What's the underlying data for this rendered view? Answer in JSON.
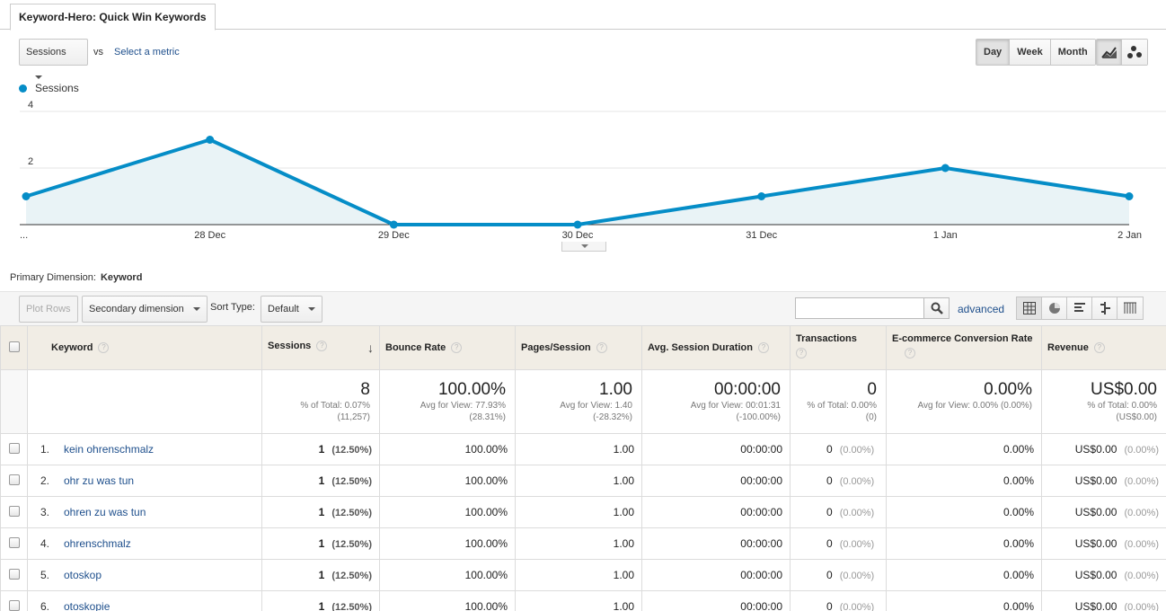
{
  "report_tab": "Keyword-Hero: Quick Win Keywords",
  "controls": {
    "metric": "Sessions",
    "vs": "vs",
    "select_metric": "Select a metric",
    "granularity": [
      "Day",
      "Week",
      "Month"
    ],
    "active_granularity": "Day"
  },
  "chart_data": {
    "type": "area",
    "series": [
      {
        "name": "Sessions",
        "color": "#058dc7",
        "values": [
          1,
          3,
          0,
          0,
          1,
          2,
          1
        ]
      }
    ],
    "x_ticks": [
      "...",
      "28 Dec",
      "29 Dec",
      "30 Dec",
      "31 Dec",
      "1 Jan",
      "2 Jan"
    ],
    "y_ticks": [
      2,
      4
    ],
    "ylim": [
      0,
      4
    ],
    "grid": true,
    "legend": "top-left"
  },
  "primary_dimension": {
    "label": "Primary Dimension:",
    "value": "Keyword"
  },
  "toolbar": {
    "plot_rows": "Plot Rows",
    "secondary_dimension": "Secondary dimension",
    "sort_type_label": "Sort Type:",
    "sort_type": "Default",
    "advanced": "advanced"
  },
  "table": {
    "headers": {
      "keyword": "Keyword",
      "sessions": "Sessions",
      "bounce": "Bounce Rate",
      "pages": "Pages/Session",
      "duration": "Avg. Session Duration",
      "transactions": "Transactions",
      "conversion": "E-commerce Conversion Rate",
      "revenue": "Revenue"
    },
    "totals": {
      "sessions": {
        "value": "8",
        "l1": "% of Total: 0.07%",
        "l2": "(11,257)"
      },
      "bounce": {
        "value": "100.00%",
        "l1": "Avg for View: 77.93%",
        "l2": "(28.31%)"
      },
      "pages": {
        "value": "1.00",
        "l1": "Avg for View: 1.40",
        "l2": "(-28.32%)"
      },
      "duration": {
        "value": "00:00:00",
        "l1": "Avg for View: 00:01:31",
        "l2": "(-100.00%)"
      },
      "transactions": {
        "value": "0",
        "l1": "% of Total: 0.00%",
        "l2": "(0)"
      },
      "conversion": {
        "value": "0.00%",
        "l1": "Avg for View: 0.00% (0.00%)",
        "l2": ""
      },
      "revenue": {
        "value": "US$0.00",
        "l1": "% of Total: 0.00%",
        "l2": "(US$0.00)"
      }
    },
    "rows": [
      {
        "num": "1.",
        "keyword": "kein ohrenschmalz",
        "sessions": "1",
        "sessions_pct": "(12.50%)",
        "bounce": "100.00%",
        "pages": "1.00",
        "duration": "00:00:00",
        "transactions": "0",
        "transactions_pct": "(0.00%)",
        "conversion": "0.00%",
        "revenue": "US$0.00",
        "revenue_pct": "(0.00%)"
      },
      {
        "num": "2.",
        "keyword": "ohr zu was tun",
        "sessions": "1",
        "sessions_pct": "(12.50%)",
        "bounce": "100.00%",
        "pages": "1.00",
        "duration": "00:00:00",
        "transactions": "0",
        "transactions_pct": "(0.00%)",
        "conversion": "0.00%",
        "revenue": "US$0.00",
        "revenue_pct": "(0.00%)"
      },
      {
        "num": "3.",
        "keyword": "ohren zu was tun",
        "sessions": "1",
        "sessions_pct": "(12.50%)",
        "bounce": "100.00%",
        "pages": "1.00",
        "duration": "00:00:00",
        "transactions": "0",
        "transactions_pct": "(0.00%)",
        "conversion": "0.00%",
        "revenue": "US$0.00",
        "revenue_pct": "(0.00%)"
      },
      {
        "num": "4.",
        "keyword": "ohrenschmalz",
        "sessions": "1",
        "sessions_pct": "(12.50%)",
        "bounce": "100.00%",
        "pages": "1.00",
        "duration": "00:00:00",
        "transactions": "0",
        "transactions_pct": "(0.00%)",
        "conversion": "0.00%",
        "revenue": "US$0.00",
        "revenue_pct": "(0.00%)"
      },
      {
        "num": "5.",
        "keyword": "otoskop",
        "sessions": "1",
        "sessions_pct": "(12.50%)",
        "bounce": "100.00%",
        "pages": "1.00",
        "duration": "00:00:00",
        "transactions": "0",
        "transactions_pct": "(0.00%)",
        "conversion": "0.00%",
        "revenue": "US$0.00",
        "revenue_pct": "(0.00%)"
      },
      {
        "num": "6.",
        "keyword": "otoskopie",
        "sessions": "1",
        "sessions_pct": "(12.50%)",
        "bounce": "100.00%",
        "pages": "1.00",
        "duration": "00:00:00",
        "transactions": "0",
        "transactions_pct": "(0.00%)",
        "conversion": "0.00%",
        "revenue": "US$0.00",
        "revenue_pct": "(0.00%)"
      }
    ]
  }
}
